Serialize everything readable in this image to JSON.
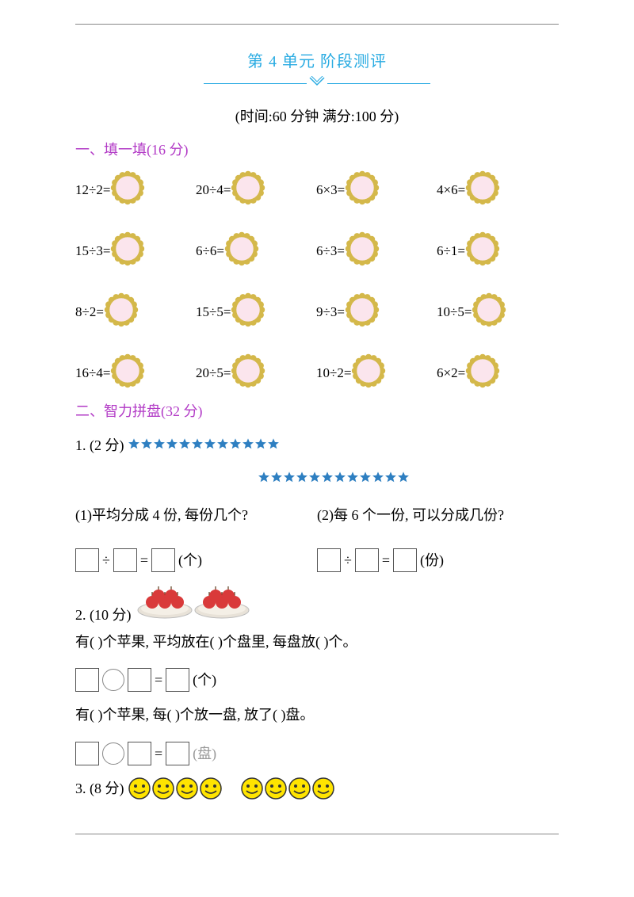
{
  "title": "第 4 单元   阶段测评",
  "meta": "(时间:60 分钟       满分:100 分)",
  "section1": {
    "heading": "一、填一填(16 分)",
    "rows": [
      [
        "12÷2=",
        "20÷4=",
        "6×3=",
        "4×6="
      ],
      [
        "15÷3=",
        "6÷6=",
        "6÷3=",
        "6÷1="
      ],
      [
        "8÷2=",
        "15÷5=",
        "9÷3=",
        "10÷5="
      ],
      [
        "16÷4=",
        "20÷5=",
        "10÷2=",
        "6×2="
      ]
    ]
  },
  "section2": {
    "heading": "二、智力拼盘(32 分)",
    "q1_label": "1. (2 分)",
    "q1_sub1": "(1)平均分成 4 份, 每份几个?",
    "q1_sub2": "(2)每 6 个一份, 可以分成几份?",
    "unit_ge": "(个)",
    "unit_fen": "(份)",
    "unit_pan": "(盘)",
    "q2_label": "2. (10 分)",
    "q2_line1": "有(       )个苹果, 平均放在(       )个盘里, 每盘放(       )个。",
    "q2_line2": "有(       )个苹果, 每(       )个放一盘, 放了(       )盘。",
    "q3_label": "3. (8 分)",
    "divider": "÷",
    "equals": "="
  },
  "colors": {
    "accent": "#29abe2",
    "section": "#b23ac6",
    "star": "#2e7fc1",
    "flower_petal": "#d4b84a",
    "flower_center": "#fbe5ed",
    "smiley": "#ffe400",
    "apple": "#d93a3a",
    "plate": "#e8e2d8"
  }
}
